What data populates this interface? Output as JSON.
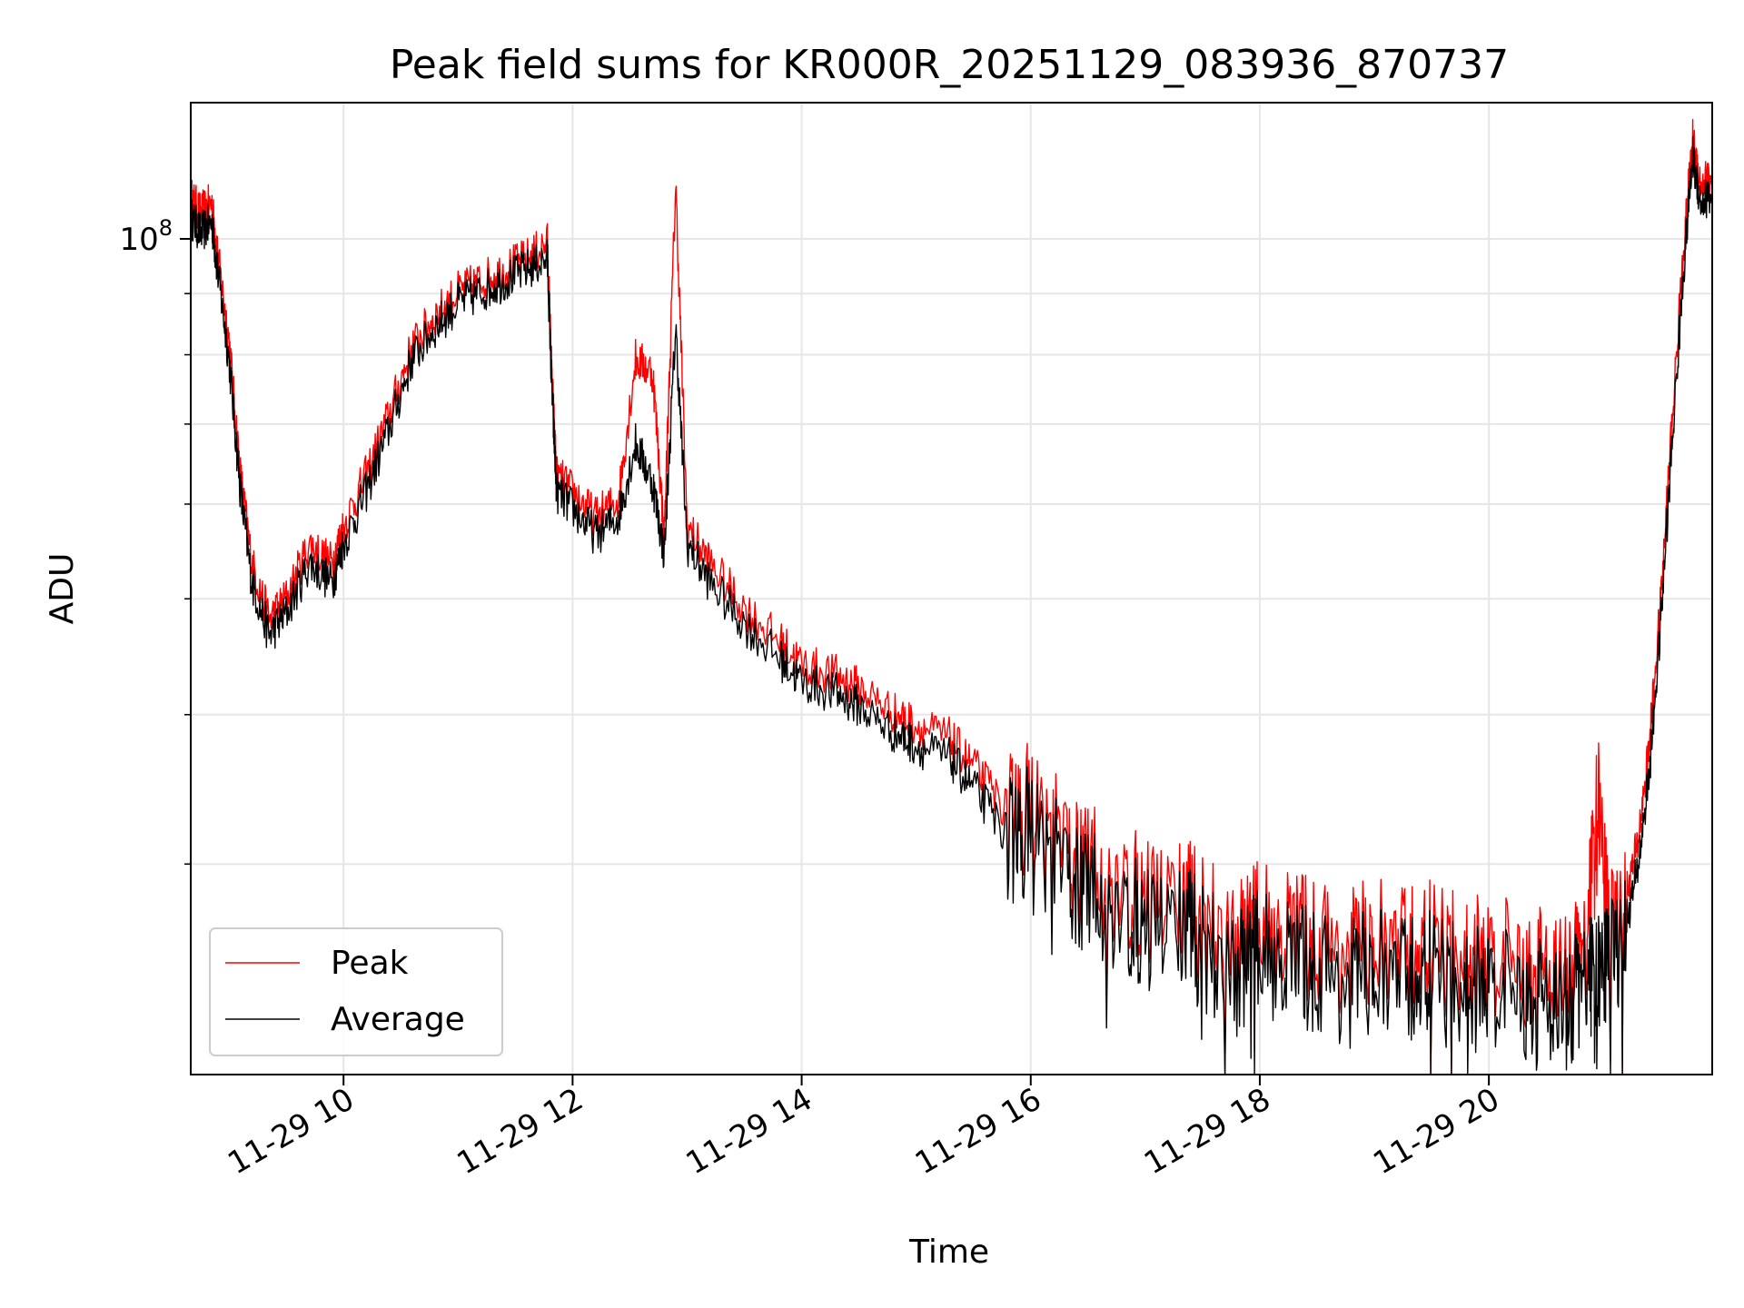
{
  "chart_data": {
    "type": "line",
    "title": "Peak field sums for KR000R_20251129_083936_870737",
    "xlabel": "Time",
    "ylabel": "ADU",
    "x_range_hours": [
      8.666,
      21.95
    ],
    "ylim": [
      20000000,
      130000000
    ],
    "y_scale": "log",
    "grid": true,
    "legend_position": "lower-left",
    "x_ticks": [
      {
        "hour": 10,
        "label": "11-29 10"
      },
      {
        "hour": 12,
        "label": "11-29 12"
      },
      {
        "hour": 14,
        "label": "11-29 14"
      },
      {
        "hour": 16,
        "label": "11-29 16"
      },
      {
        "hour": 18,
        "label": "11-29 18"
      },
      {
        "hour": 20,
        "label": "11-29 20"
      }
    ],
    "y_ticks_labeled": [
      {
        "value": 100000000,
        "base": "10",
        "exp": "8"
      }
    ],
    "y_ticks_minor": [
      30000000,
      40000000,
      50000000,
      60000000,
      70000000,
      80000000,
      90000000
    ],
    "series": [
      {
        "name": "Average",
        "color": "#000000",
        "x": [
          8.67,
          8.75,
          8.85,
          8.9,
          9.0,
          9.1,
          9.2,
          9.35,
          9.5,
          9.7,
          9.9,
          10.0,
          10.2,
          10.4,
          10.6,
          10.8,
          11.0,
          11.2,
          11.4,
          11.6,
          11.78,
          11.82,
          11.86,
          12.0,
          12.2,
          12.4,
          12.55,
          12.7,
          12.8,
          12.9,
          13.0,
          13.2,
          13.5,
          13.8,
          14.0,
          14.3,
          14.5,
          14.8,
          15.0,
          15.3,
          15.5,
          15.8,
          16.0,
          16.3,
          16.5,
          16.8,
          17.0,
          17.3,
          17.5,
          17.8,
          18.0,
          18.3,
          18.5,
          18.8,
          19.0,
          19.3,
          19.5,
          19.8,
          20.0,
          20.3,
          20.5,
          20.7,
          20.85,
          20.95,
          21.05,
          21.2,
          21.3,
          21.4,
          21.5,
          21.6,
          21.7,
          21.78,
          21.85,
          21.95
        ],
        "y": [
          105000000,
          102000000,
          104000000,
          95000000,
          80000000,
          62000000,
          52000000,
          47000000,
          49000000,
          54000000,
          52000000,
          56000000,
          62000000,
          70000000,
          80000000,
          85000000,
          89000000,
          91000000,
          93000000,
          95000000,
          97000000,
          75000000,
          62000000,
          60000000,
          57000000,
          59000000,
          68000000,
          63000000,
          55000000,
          85000000,
          56000000,
          52000000,
          48000000,
          45000000,
          43000000,
          42000000,
          41000000,
          39000000,
          38000000,
          37000000,
          35000000,
          32000000,
          33000000,
          30000000,
          29000000,
          28000000,
          27000000,
          27500000,
          26500000,
          25000000,
          26000000,
          25500000,
          25000000,
          24500000,
          25000000,
          24500000,
          25000000,
          24000000,
          24500000,
          23500000,
          24000000,
          23000000,
          25000000,
          24500000,
          25500000,
          27000000,
          30000000,
          36000000,
          48000000,
          68000000,
          95000000,
          118000000,
          108000000,
          110000000
        ]
      },
      {
        "name": "Peak",
        "color": "#ff0000",
        "x": [
          8.67,
          8.75,
          8.85,
          8.9,
          9.0,
          9.1,
          9.2,
          9.35,
          9.5,
          9.7,
          9.9,
          10.0,
          10.2,
          10.4,
          10.6,
          10.8,
          11.0,
          11.2,
          11.4,
          11.6,
          11.78,
          11.82,
          11.86,
          12.0,
          12.2,
          12.4,
          12.55,
          12.7,
          12.8,
          12.9,
          13.0,
          13.2,
          13.5,
          13.8,
          14.0,
          14.3,
          14.5,
          14.8,
          15.0,
          15.3,
          15.5,
          15.8,
          16.0,
          16.3,
          16.5,
          16.8,
          17.0,
          17.3,
          17.5,
          17.8,
          18.0,
          18.3,
          18.5,
          18.8,
          19.0,
          19.3,
          19.5,
          19.8,
          20.0,
          20.3,
          20.5,
          20.7,
          20.85,
          20.95,
          21.05,
          21.2,
          21.3,
          21.4,
          21.5,
          21.6,
          21.7,
          21.78,
          21.85,
          21.95
        ],
        "y": [
          109000000,
          106000000,
          108000000,
          98000000,
          83000000,
          64000000,
          54000000,
          48500000,
          50500000,
          56000000,
          54000000,
          58000000,
          64000000,
          72000000,
          82000000,
          87000000,
          91000000,
          93000000,
          95000000,
          97000000,
          100000000,
          77000000,
          64000000,
          62000000,
          59000000,
          61000000,
          80000000,
          78000000,
          57000000,
          112000000,
          58000000,
          54000000,
          49500000,
          46500000,
          44500000,
          43500000,
          42500000,
          40500000,
          39500000,
          38500000,
          36500000,
          33500000,
          34500000,
          31500000,
          30500000,
          29500000,
          28500000,
          29000000,
          28000000,
          26500000,
          27500000,
          27000000,
          26500000,
          26000000,
          26500000,
          26000000,
          26500000,
          25500000,
          26000000,
          25000000,
          25500000,
          24500000,
          26500000,
          35000000,
          27000000,
          28500000,
          31500000,
          38000000,
          50000000,
          71000000,
          99000000,
          122000000,
          112000000,
          114000000
        ]
      }
    ]
  }
}
